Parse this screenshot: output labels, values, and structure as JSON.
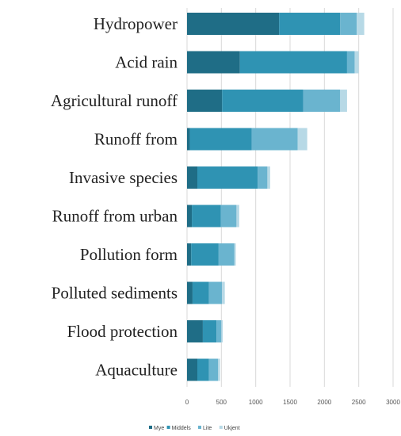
{
  "chart_data": {
    "type": "bar",
    "orientation": "horizontal",
    "stacked": true,
    "categories": [
      "Hydropower",
      "Acid rain",
      "Agricultural runoff",
      "Runoff from",
      "Invasive species",
      "Runoff from urban",
      "Pollution form",
      "Polluted sediments",
      "Flood protection",
      "Aquaculture"
    ],
    "series": [
      {
        "name": "Mye",
        "color": "#1f6d86",
        "values": [
          1340,
          770,
          510,
          40,
          150,
          70,
          60,
          80,
          230,
          150
        ]
      },
      {
        "name": "Middels",
        "color": "#2f93b3",
        "values": [
          890,
          1560,
          1180,
          900,
          880,
          420,
          400,
          240,
          200,
          170
        ]
      },
      {
        "name": "Lite",
        "color": "#6ab4cf",
        "values": [
          240,
          110,
          540,
          670,
          140,
          230,
          230,
          190,
          70,
          130
        ]
      },
      {
        "name": "Ukjent",
        "color": "#b7d9e6",
        "values": [
          110,
          60,
          100,
          140,
          40,
          40,
          20,
          40,
          20,
          30
        ]
      }
    ],
    "xlim": [
      0,
      3000
    ],
    "xticks": [
      0,
      500,
      1000,
      1500,
      2000,
      2500,
      3000
    ],
    "grid": true,
    "legend_position": "bottom-left"
  }
}
